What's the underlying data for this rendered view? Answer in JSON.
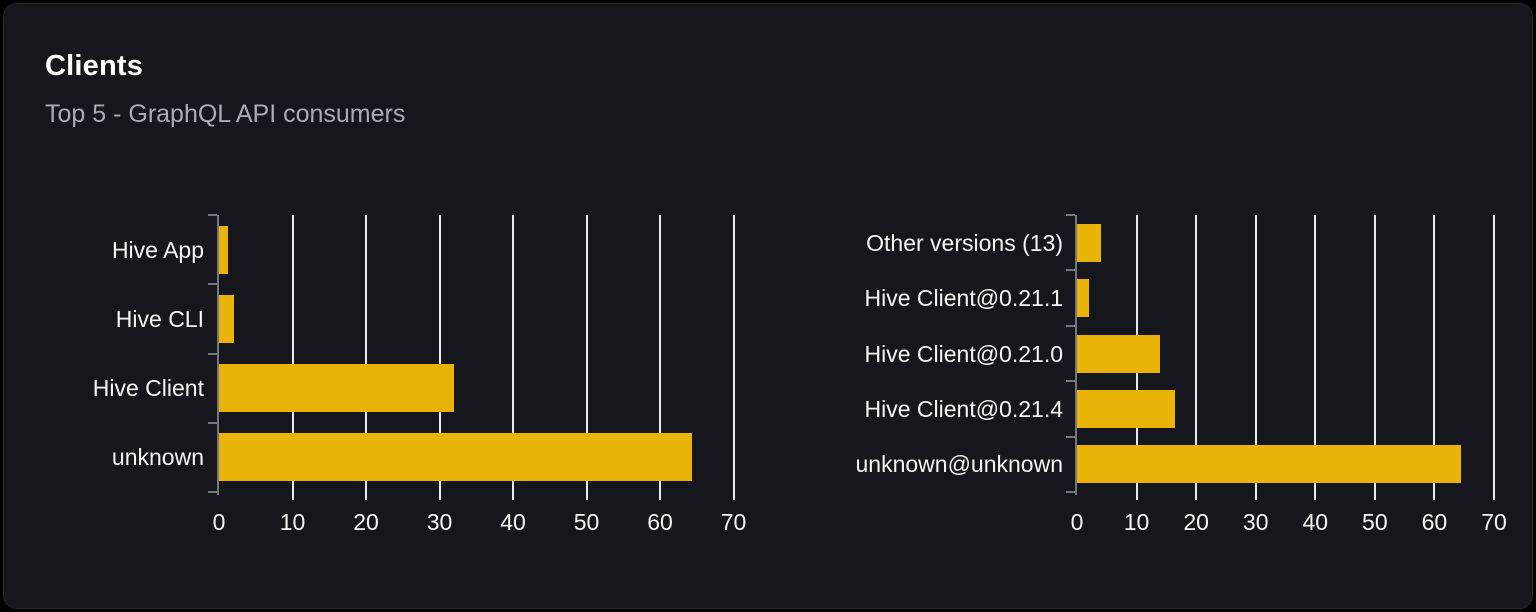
{
  "header": {
    "title": "Clients",
    "subtitle": "Top 5 - GraphQL API consumers"
  },
  "colors": {
    "bar": "#eab308",
    "card_background": "#15171c",
    "card_border": "#272930",
    "gridline": "#e8eaef",
    "axis": "#74767d",
    "label": "#f5f5f6",
    "subtitle": "#aaacb4"
  },
  "chart_data": [
    {
      "type": "bar",
      "orientation": "horizontal",
      "name": "clients-by-name",
      "categories": [
        "Hive App",
        "Hive CLI",
        "Hive Client",
        "unknown"
      ],
      "values": [
        1.2,
        2.1,
        32,
        64.4
      ],
      "xlim": [
        0,
        70
      ],
      "xticks": [
        0,
        10,
        20,
        30,
        40,
        50,
        60,
        70
      ],
      "grid": true,
      "legend": "none",
      "bar_color": "#eab308"
    },
    {
      "type": "bar",
      "orientation": "horizontal",
      "name": "clients-by-version",
      "categories": [
        "Other versions (13)",
        "Hive Client@0.21.1",
        "Hive Client@0.21.0",
        "Hive Client@0.21.4",
        "unknown@unknown"
      ],
      "values": [
        4,
        2,
        14,
        16.5,
        64.4
      ],
      "xlim": [
        0,
        70
      ],
      "xticks": [
        0,
        10,
        20,
        30,
        40,
        50,
        60,
        70
      ],
      "grid": true,
      "legend": "none",
      "bar_color": "#eab308"
    }
  ]
}
